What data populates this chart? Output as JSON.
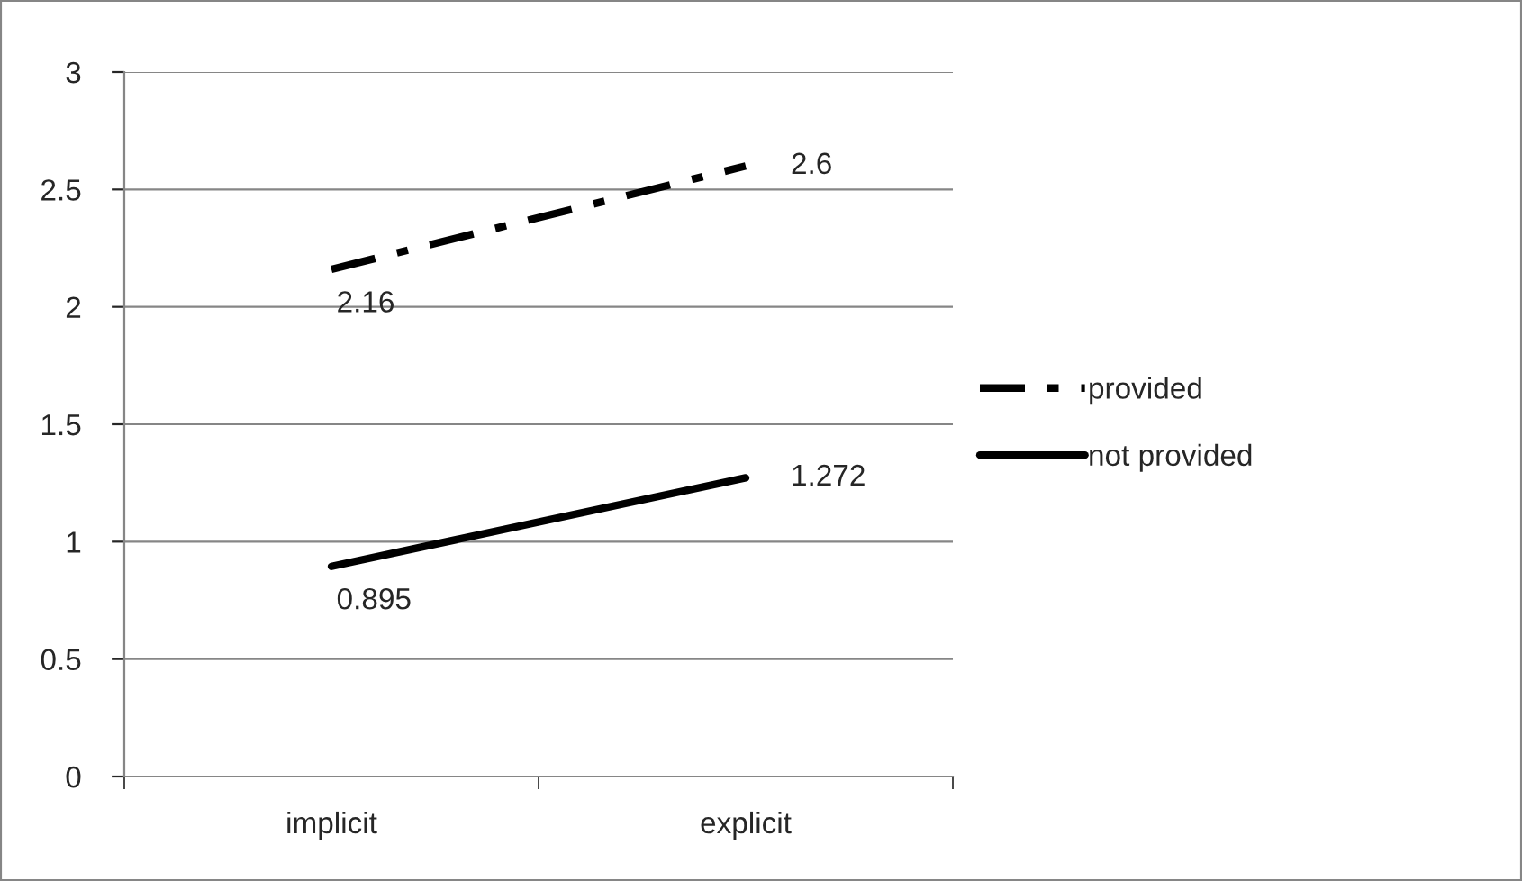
{
  "chart_data": {
    "type": "line",
    "categories": [
      "implicit",
      "explicit"
    ],
    "series": [
      {
        "name": "provided",
        "color": "#000000",
        "values": [
          2.16,
          2.6
        ],
        "line_style": "dashdot"
      },
      {
        "name": "not provided",
        "color": "#000000",
        "values": [
          0.895,
          1.272
        ],
        "line_style": "solid"
      }
    ],
    "ylim": [
      0,
      3
    ],
    "yticks": [
      0,
      0.5,
      1,
      1.5,
      2,
      2.5,
      3
    ],
    "grid": "y",
    "legend": "right",
    "data_labels": true,
    "marker": "none"
  }
}
